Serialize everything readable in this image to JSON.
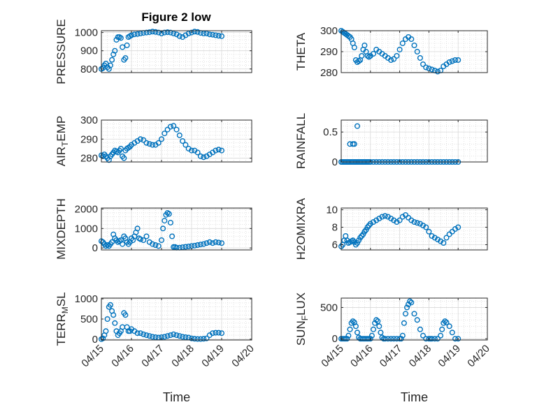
{
  "figure": {
    "title": "Figure 2 low"
  },
  "chart_data": [
    {
      "type": "scatter",
      "ylabel": "PRESSURE",
      "xlabel": "",
      "title": "Figure 2 low",
      "xlim": [
        0,
        5
      ],
      "xticks": [
        "04/15",
        "04/16",
        "04/17",
        "04/18",
        "04/19",
        "04/20"
      ],
      "show_xtick_labels": false,
      "ylim": [
        780,
        1010
      ],
      "yticks": [
        800,
        900,
        1000
      ],
      "grid": true,
      "color": "#0072BD",
      "x": [
        0.0,
        0.05,
        0.1,
        0.15,
        0.2,
        0.25,
        0.3,
        0.35,
        0.4,
        0.45,
        0.5,
        0.55,
        0.6,
        0.65,
        0.7,
        0.75,
        0.8,
        0.85,
        0.9,
        0.95,
        1.0,
        1.1,
        1.2,
        1.3,
        1.4,
        1.5,
        1.6,
        1.7,
        1.8,
        1.9,
        2.0,
        2.1,
        2.2,
        2.3,
        2.4,
        2.5,
        2.6,
        2.7,
        2.8,
        2.9,
        3.0,
        3.1,
        3.2,
        3.3,
        3.4,
        3.5,
        3.6,
        3.7,
        3.8,
        3.9,
        4.0
      ],
      "y": [
        800,
        805,
        820,
        830,
        810,
        800,
        820,
        850,
        880,
        900,
        960,
        975,
        975,
        970,
        920,
        850,
        860,
        930,
        975,
        980,
        985,
        990,
        992,
        995,
        998,
        1000,
        1002,
        1005,
        1003,
        1000,
        995,
        1000,
        1002,
        1000,
        995,
        990,
        980,
        975,
        985,
        995,
        1000,
        1005,
        1003,
        998,
        995,
        995,
        990,
        988,
        985,
        982,
        980
      ]
    },
    {
      "type": "scatter",
      "ylabel": "THETA",
      "xlim": [
        0,
        5
      ],
      "xticks": [
        "04/15",
        "04/16",
        "04/17",
        "04/18",
        "04/19",
        "04/20"
      ],
      "show_xtick_labels": false,
      "ylim": [
        280,
        300
      ],
      "yticks": [
        280,
        290,
        300
      ],
      "grid": true,
      "color": "#0072BD",
      "x": [
        0.0,
        0.05,
        0.1,
        0.15,
        0.2,
        0.25,
        0.3,
        0.35,
        0.4,
        0.45,
        0.5,
        0.55,
        0.6,
        0.65,
        0.7,
        0.75,
        0.8,
        0.85,
        0.9,
        0.95,
        1.0,
        1.1,
        1.2,
        1.3,
        1.4,
        1.5,
        1.6,
        1.7,
        1.8,
        1.9,
        2.0,
        2.1,
        2.2,
        2.3,
        2.4,
        2.5,
        2.6,
        2.7,
        2.8,
        2.9,
        3.0,
        3.1,
        3.2,
        3.3,
        3.4,
        3.5,
        3.6,
        3.7,
        3.8,
        3.9,
        4.0
      ],
      "y": [
        300,
        299.5,
        299,
        298.5,
        298,
        297.5,
        297,
        296,
        294,
        292,
        286,
        285,
        285.5,
        286,
        288,
        291,
        293,
        290,
        288,
        287.5,
        288,
        289,
        291,
        290,
        289,
        288,
        287,
        286,
        286.5,
        288,
        291,
        294,
        296,
        297,
        296,
        293,
        290,
        287,
        284,
        282.5,
        282,
        281.5,
        281,
        280.5,
        281,
        283,
        284,
        285,
        285.5,
        286,
        286
      ]
    },
    {
      "type": "scatter",
      "ylabel_main": "AIR",
      "ylabel_sub": "T",
      "ylabel_rest": "EMP",
      "xlim": [
        0,
        5
      ],
      "xticks": [
        "04/15",
        "04/16",
        "04/17",
        "04/18",
        "04/19",
        "04/20"
      ],
      "show_xtick_labels": false,
      "ylim": [
        278,
        300
      ],
      "yticks": [
        280,
        290,
        300
      ],
      "grid": true,
      "color": "#0072BD",
      "x": [
        0.0,
        0.05,
        0.1,
        0.15,
        0.2,
        0.25,
        0.3,
        0.35,
        0.4,
        0.45,
        0.5,
        0.55,
        0.6,
        0.65,
        0.7,
        0.75,
        0.8,
        0.85,
        0.9,
        0.95,
        1.0,
        1.1,
        1.2,
        1.3,
        1.4,
        1.5,
        1.6,
        1.7,
        1.8,
        1.9,
        2.0,
        2.1,
        2.2,
        2.3,
        2.4,
        2.5,
        2.6,
        2.7,
        2.8,
        2.9,
        3.0,
        3.1,
        3.2,
        3.3,
        3.4,
        3.5,
        3.6,
        3.7,
        3.8,
        3.9,
        4.0
      ],
      "y": [
        281.5,
        281,
        282,
        281,
        280,
        279,
        281,
        282,
        283,
        284,
        283.5,
        283,
        284,
        285,
        281,
        280,
        284,
        285,
        285.5,
        286,
        287,
        288,
        289,
        290,
        289.5,
        288,
        287.5,
        287,
        287,
        288,
        290,
        293,
        295,
        296.5,
        297,
        295,
        292,
        289,
        287,
        285,
        284,
        284,
        283,
        281,
        280.5,
        281,
        282,
        283,
        284,
        284.5,
        284
      ]
    },
    {
      "type": "scatter",
      "ylabel": "RAINFALL",
      "xlim": [
        0,
        5
      ],
      "xticks": [
        "04/15",
        "04/16",
        "04/17",
        "04/18",
        "04/19",
        "04/20"
      ],
      "show_xtick_labels": false,
      "ylim": [
        0,
        0.7
      ],
      "yticks": [
        0,
        0.5
      ],
      "ytick_labels": [
        "0",
        "0.5"
      ],
      "grid": true,
      "color": "#0072BD",
      "x": [
        0.0,
        0.05,
        0.1,
        0.15,
        0.2,
        0.25,
        0.3,
        0.35,
        0.4,
        0.45,
        0.5,
        0.55,
        0.6,
        0.65,
        0.7,
        0.75,
        0.8,
        0.85,
        0.9,
        0.95,
        1.0,
        1.1,
        1.2,
        1.3,
        1.4,
        1.5,
        1.6,
        1.7,
        1.8,
        1.9,
        2.0,
        2.1,
        2.2,
        2.3,
        2.4,
        2.5,
        2.6,
        2.7,
        2.8,
        2.9,
        3.0,
        3.1,
        3.2,
        3.3,
        3.4,
        3.5,
        3.6,
        3.7,
        3.8,
        3.9,
        4.0,
        0.3,
        0.4,
        0.45,
        0.55
      ],
      "y": [
        0,
        0,
        0,
        0,
        0,
        0,
        0,
        0,
        0,
        0,
        0,
        0,
        0,
        0,
        0,
        0,
        0,
        0,
        0,
        0,
        0,
        0,
        0,
        0,
        0,
        0,
        0,
        0,
        0,
        0,
        0,
        0,
        0,
        0,
        0,
        0,
        0,
        0,
        0,
        0,
        0,
        0,
        0,
        0,
        0,
        0,
        0,
        0,
        0,
        0,
        0,
        0.3,
        0.3,
        0.3,
        0.6
      ]
    },
    {
      "type": "scatter",
      "ylabel": "MIXDEPTH",
      "xlim": [
        0,
        5
      ],
      "xticks": [
        "04/15",
        "04/16",
        "04/17",
        "04/18",
        "04/19",
        "04/20"
      ],
      "show_xtick_labels": false,
      "ylim": [
        -100,
        2050
      ],
      "yticks": [
        0,
        1000,
        2000
      ],
      "grid": true,
      "color": "#0072BD",
      "x": [
        0.0,
        0.05,
        0.1,
        0.15,
        0.2,
        0.25,
        0.3,
        0.35,
        0.4,
        0.45,
        0.5,
        0.55,
        0.6,
        0.65,
        0.7,
        0.75,
        0.8,
        0.85,
        0.9,
        0.95,
        1.0,
        1.05,
        1.1,
        1.15,
        1.2,
        1.25,
        1.3,
        1.4,
        1.5,
        1.6,
        1.7,
        1.8,
        1.9,
        2.0,
        2.05,
        2.1,
        2.15,
        2.2,
        2.25,
        2.3,
        2.35,
        2.4,
        2.45,
        2.5,
        2.6,
        2.7,
        2.8,
        2.9,
        3.0,
        3.1,
        3.2,
        3.3,
        3.4,
        3.5,
        3.6,
        3.7,
        3.8,
        3.9,
        4.0
      ],
      "y": [
        350,
        300,
        200,
        100,
        150,
        100,
        200,
        300,
        700,
        500,
        400,
        300,
        350,
        400,
        200,
        600,
        500,
        300,
        200,
        300,
        500,
        400,
        600,
        800,
        1000,
        500,
        450,
        400,
        600,
        300,
        200,
        150,
        100,
        400,
        1000,
        1400,
        1700,
        1800,
        1750,
        1300,
        600,
        50,
        50,
        20,
        20,
        40,
        60,
        80,
        100,
        120,
        150,
        180,
        200,
        250,
        300,
        250,
        300,
        280,
        250
      ]
    },
    {
      "type": "scatter",
      "ylabel": "H2OMIXRA",
      "xlim": [
        0,
        5
      ],
      "xticks": [
        "04/15",
        "04/16",
        "04/17",
        "04/18",
        "04/19",
        "04/20"
      ],
      "show_xtick_labels": false,
      "ylim": [
        5.4,
        10.2
      ],
      "yticks": [
        6,
        8,
        10
      ],
      "grid": true,
      "color": "#0072BD",
      "x": [
        0.0,
        0.05,
        0.1,
        0.15,
        0.2,
        0.25,
        0.3,
        0.35,
        0.4,
        0.45,
        0.5,
        0.55,
        0.6,
        0.65,
        0.7,
        0.75,
        0.8,
        0.85,
        0.9,
        0.95,
        1.0,
        1.1,
        1.2,
        1.3,
        1.4,
        1.5,
        1.6,
        1.7,
        1.8,
        1.9,
        2.0,
        2.1,
        2.2,
        2.3,
        2.4,
        2.5,
        2.6,
        2.7,
        2.8,
        2.9,
        3.0,
        3.1,
        3.2,
        3.3,
        3.4,
        3.5,
        3.6,
        3.7,
        3.8,
        3.9,
        4.0
      ],
      "y": [
        5.8,
        6.0,
        6.5,
        7.0,
        6.5,
        6.2,
        6.3,
        6.4,
        6.5,
        6.3,
        6.0,
        6.2,
        6.5,
        6.8,
        7.0,
        7.2,
        7.5,
        7.7,
        8.0,
        8.2,
        8.4,
        8.6,
        8.8,
        9.0,
        9.2,
        9.3,
        9.2,
        9.0,
        8.8,
        8.6,
        8.8,
        9.2,
        9.4,
        9.1,
        8.8,
        8.6,
        8.5,
        8.4,
        8.2,
        8.0,
        7.5,
        7.0,
        6.8,
        6.6,
        6.4,
        6.2,
        6.8,
        7.2,
        7.5,
        7.8,
        8.0
      ]
    },
    {
      "type": "scatter",
      "ylabel_main": "TERR",
      "ylabel_sub": "M",
      "ylabel_rest": "SL",
      "xlim": [
        0,
        5
      ],
      "xticks": [
        "04/15",
        "04/16",
        "04/17",
        "04/18",
        "04/19",
        "04/20"
      ],
      "show_xtick_labels": true,
      "xlabel": "Time",
      "ylim": [
        -20,
        1020
      ],
      "yticks": [
        0,
        500,
        1000
      ],
      "grid": true,
      "color": "#0072BD",
      "x": [
        0.0,
        0.05,
        0.1,
        0.15,
        0.2,
        0.25,
        0.3,
        0.35,
        0.4,
        0.45,
        0.5,
        0.55,
        0.6,
        0.65,
        0.7,
        0.75,
        0.8,
        0.85,
        0.9,
        0.95,
        1.0,
        1.1,
        1.2,
        1.3,
        1.4,
        1.5,
        1.6,
        1.7,
        1.8,
        1.9,
        2.0,
        2.1,
        2.2,
        2.3,
        2.4,
        2.5,
        2.6,
        2.7,
        2.8,
        2.9,
        3.0,
        3.1,
        3.2,
        3.3,
        3.4,
        3.5,
        3.6,
        3.7,
        3.8,
        3.9,
        4.0
      ],
      "y": [
        0,
        20,
        100,
        200,
        500,
        800,
        850,
        700,
        600,
        400,
        200,
        100,
        150,
        200,
        300,
        650,
        600,
        300,
        200,
        200,
        250,
        200,
        150,
        150,
        120,
        100,
        80,
        60,
        50,
        40,
        50,
        60,
        80,
        100,
        120,
        100,
        80,
        60,
        50,
        40,
        20,
        10,
        5,
        5,
        10,
        20,
        100,
        150,
        160,
        160,
        150
      ]
    },
    {
      "type": "scatter",
      "ylabel_main": "SUN",
      "ylabel_sub": "F",
      "ylabel_rest": "LUX",
      "xlim": [
        0,
        5
      ],
      "xticks": [
        "04/15",
        "04/16",
        "04/17",
        "04/18",
        "04/19",
        "04/20"
      ],
      "show_xtick_labels": true,
      "xlabel": "Time",
      "ylim": [
        -20,
        650
      ],
      "yticks": [
        0,
        500
      ],
      "grid": true,
      "color": "#0072BD",
      "x": [
        0.0,
        0.05,
        0.1,
        0.15,
        0.2,
        0.25,
        0.3,
        0.35,
        0.4,
        0.45,
        0.5,
        0.55,
        0.6,
        0.65,
        0.7,
        0.75,
        0.8,
        0.85,
        0.9,
        0.95,
        1.0,
        1.05,
        1.1,
        1.15,
        1.2,
        1.25,
        1.3,
        1.35,
        1.4,
        1.45,
        1.5,
        1.6,
        1.7,
        1.8,
        1.9,
        2.0,
        2.05,
        2.1,
        2.15,
        2.2,
        2.25,
        2.3,
        2.35,
        2.4,
        2.5,
        2.6,
        2.7,
        2.8,
        2.9,
        3.0,
        3.05,
        3.1,
        3.2,
        3.3,
        3.4,
        3.45,
        3.5,
        3.55,
        3.6,
        3.7,
        3.8,
        3.9,
        4.0
      ],
      "y": [
        0,
        0,
        0,
        0,
        0,
        50,
        150,
        250,
        280,
        260,
        200,
        100,
        20,
        0,
        0,
        0,
        0,
        0,
        0,
        0,
        0,
        50,
        150,
        250,
        300,
        280,
        200,
        100,
        20,
        0,
        0,
        0,
        0,
        0,
        0,
        0,
        0,
        50,
        250,
        400,
        500,
        550,
        600,
        580,
        400,
        300,
        150,
        50,
        0,
        0,
        0,
        0,
        0,
        0,
        50,
        150,
        250,
        280,
        260,
        200,
        100,
        0,
        0
      ]
    }
  ]
}
